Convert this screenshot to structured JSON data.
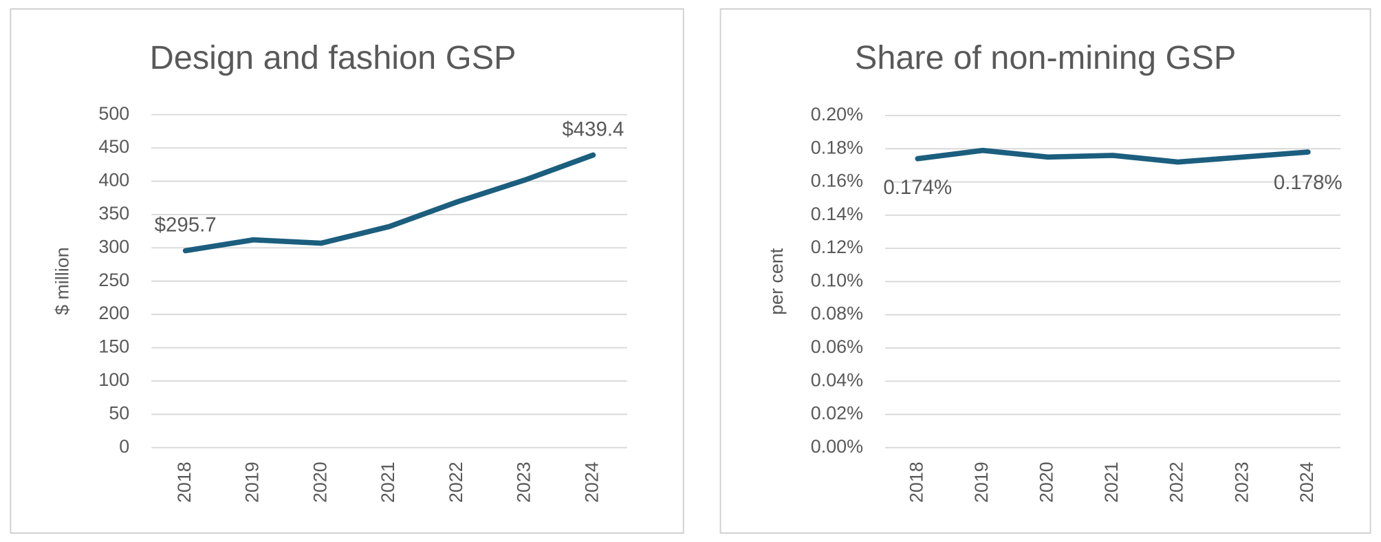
{
  "chart_data": [
    {
      "type": "line",
      "title": "Design and fashion GSP",
      "y_label": "$ million",
      "categories": [
        "2018",
        "2019",
        "2020",
        "2021",
        "2022",
        "2023",
        "2024"
      ],
      "series": [
        {
          "name": "Design and fashion GSP",
          "color": "#1b5e7e",
          "values": [
            295.7,
            312,
            307,
            332,
            369,
            402,
            439.4
          ],
          "value_labels": [
            "$295.7",
            null,
            null,
            null,
            null,
            null,
            "$439.4"
          ]
        }
      ],
      "ylim": [
        0,
        500
      ],
      "yticks": [
        0,
        50,
        100,
        150,
        200,
        250,
        300,
        350,
        400,
        450,
        500
      ],
      "grid": true
    },
    {
      "type": "line",
      "title": "Share of non-mining GSP",
      "y_label": "per cent",
      "categories": [
        "2018",
        "2019",
        "2020",
        "2021",
        "2022",
        "2023",
        "2024"
      ],
      "series": [
        {
          "name": "Share of non-mining GSP",
          "color": "#1b5e7e",
          "values": [
            0.174,
            0.179,
            0.175,
            0.176,
            0.172,
            0.175,
            0.178
          ],
          "value_labels": [
            "0.174%",
            null,
            null,
            null,
            null,
            null,
            "0.178%"
          ]
        }
      ],
      "ylim": [
        0,
        0.2
      ],
      "yticks": [
        {
          "value": 0,
          "label": "0.00%"
        },
        {
          "value": 0.02,
          "label": "0.02%"
        },
        {
          "value": 0.04,
          "label": "0.04%"
        },
        {
          "value": 0.06,
          "label": "0.06%"
        },
        {
          "value": 0.08,
          "label": "0.08%"
        },
        {
          "value": 0.1,
          "label": "0.10%"
        },
        {
          "value": 0.12,
          "label": "0.12%"
        },
        {
          "value": 0.14,
          "label": "0.14%"
        },
        {
          "value": 0.16,
          "label": "0.16%"
        },
        {
          "value": 0.18,
          "label": "0.18%"
        },
        {
          "value": 0.2,
          "label": "0.20%"
        }
      ],
      "grid": true
    }
  ]
}
